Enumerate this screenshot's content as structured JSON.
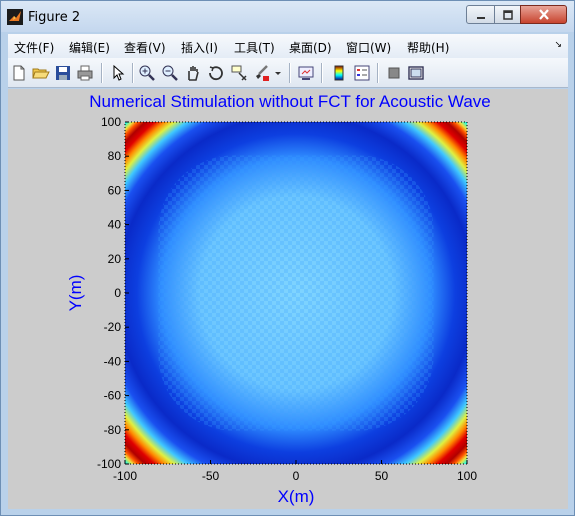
{
  "window": {
    "title": "Figure 2",
    "icon": "matlab-icon",
    "controls": [
      "minimize-icon",
      "maximize-icon",
      "close-icon"
    ]
  },
  "menubar": {
    "items": [
      "文件(F)",
      "编辑(E)",
      "查看(V)",
      "插入(I)",
      "工具(T)",
      "桌面(D)",
      "窗口(W)",
      "帮助(H)"
    ]
  },
  "toolbar": {
    "icons": [
      "new-figure-icon",
      "open-file-icon",
      "save-icon",
      "print-icon",
      "edit-plot-arrow-icon",
      "zoom-in-icon",
      "zoom-out-icon",
      "pan-hand-icon",
      "rotate-3d-icon",
      "data-cursor-icon",
      "brush-icon",
      "brush-dropdown-icon",
      "link-plot-icon",
      "colorbar-icon",
      "legend-icon",
      "hide-plot-tools-icon",
      "show-plot-tools-icon"
    ]
  },
  "chart_data": {
    "type": "heatmap",
    "title": "Numerical Stimulation without FCT for Acoustic Wave",
    "xlabel": "X(m)",
    "ylabel": "Y(m)",
    "xlim": [
      -100,
      100
    ],
    "ylim": [
      -100,
      100
    ],
    "xticks": [
      -100,
      -50,
      0,
      50,
      100
    ],
    "yticks": [
      100,
      80,
      60,
      40,
      20,
      0,
      -20,
      -40,
      -60,
      -80,
      -100
    ],
    "colormap": "jet",
    "background_value_color": "#00ffff",
    "wavefront_outer_radius": 82,
    "wavefront_inner_radius": 70,
    "colors": {
      "title": "#0000ff",
      "axis_labels": "#0000ff",
      "figure_bg": "#cccccc"
    }
  }
}
